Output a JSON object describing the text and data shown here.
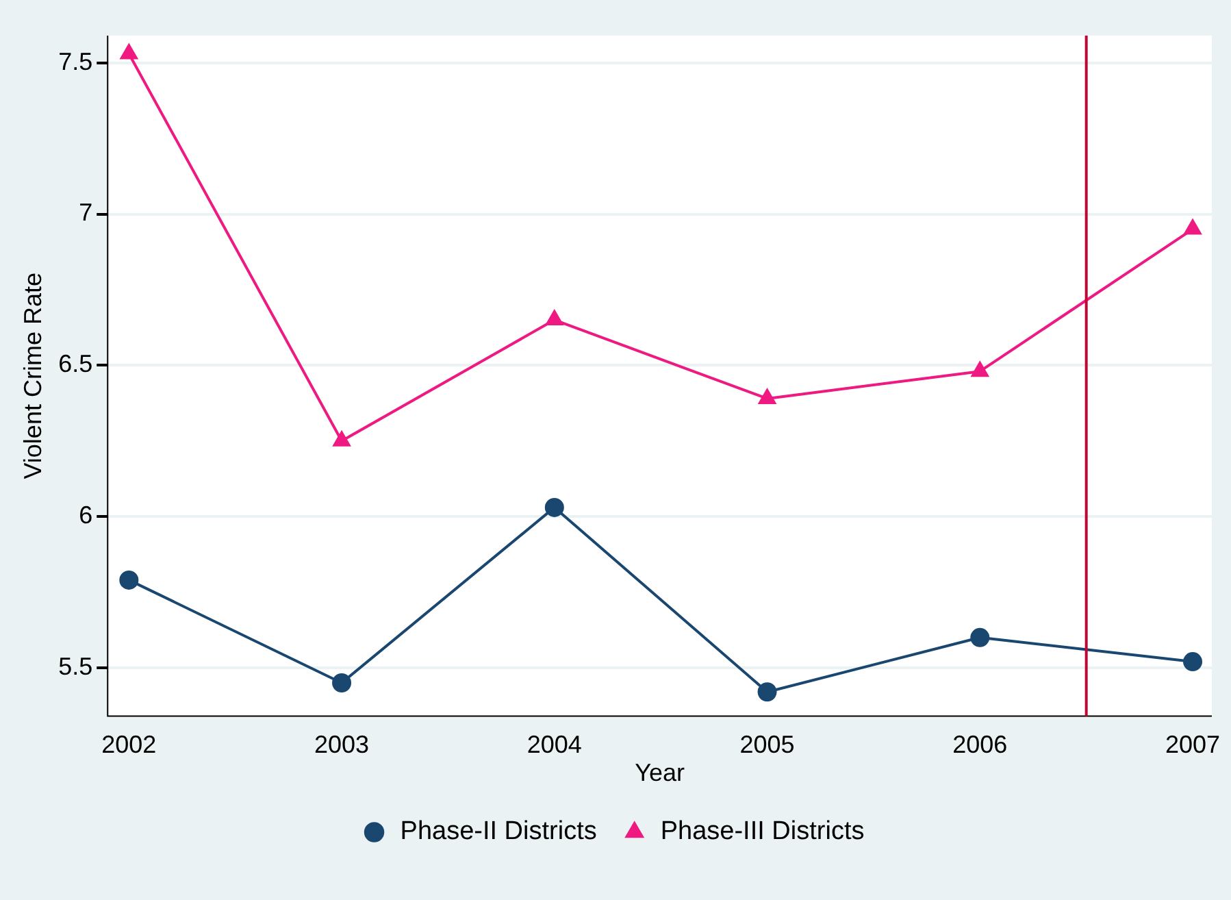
{
  "chart_data": {
    "type": "line",
    "xlabel": "Year",
    "ylabel": "Violent Crime Rate",
    "x": [
      2002,
      2003,
      2004,
      2005,
      2006,
      2007
    ],
    "series": [
      {
        "name": "Phase-II Districts",
        "color": "#1a476f",
        "marker": "circle",
        "values": [
          5.79,
          5.45,
          6.03,
          5.42,
          5.6,
          5.52
        ]
      },
      {
        "name": "Phase-III Districts",
        "color": "#ee1a82",
        "marker": "triangle",
        "values": [
          7.53,
          6.25,
          6.65,
          6.39,
          6.48,
          6.95
        ]
      }
    ],
    "xlim": [
      2001.9,
      2007.09
    ],
    "xticks": [
      2002,
      2003,
      2004,
      2005,
      2006,
      2007
    ],
    "ylim": [
      5.34,
      7.59
    ],
    "yticks": [
      5.5,
      6,
      6.5,
      7,
      7.5
    ],
    "ref_lines": [
      {
        "axis": "x",
        "value": 2006.5,
        "color": "#c10534"
      }
    ],
    "grid": "y",
    "legend": "bottom",
    "line_style": "solid"
  }
}
